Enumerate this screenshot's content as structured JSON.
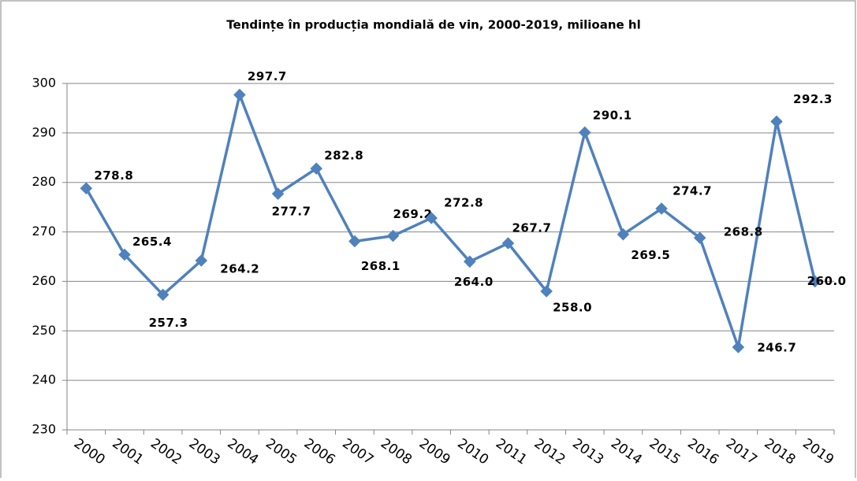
{
  "chart_data": {
    "type": "line",
    "title": "Tendințe în producția mondială de vin, 2000-2019, milioane hl",
    "categories": [
      "2000",
      "2001",
      "2002",
      "2003",
      "2004",
      "2005",
      "2006",
      "2007",
      "2008",
      "2009",
      "2010",
      "2011",
      "2012",
      "2013",
      "2014",
      "2015",
      "2016",
      "2017",
      "2018",
      "2019"
    ],
    "values": [
      278.8,
      265.4,
      257.3,
      264.2,
      297.7,
      277.7,
      282.8,
      268.1,
      269.2,
      272.8,
      264.0,
      267.7,
      258.0,
      290.1,
      269.5,
      274.7,
      268.8,
      246.7,
      292.3,
      260.0
    ],
    "value_labels": [
      "278.8",
      "265.4",
      "257.3",
      "264.2",
      "297.7",
      "277.7",
      "282.8",
      "268.1",
      "269.2",
      "272.8",
      "264.0",
      "267.7",
      "258.0",
      "290.1",
      "269.5",
      "274.7",
      "268.8",
      "246.7",
      "292.3",
      "260.0"
    ],
    "color": "#4f81bd",
    "ylim": [
      230,
      300
    ],
    "yticks": [
      230,
      240,
      250,
      260,
      270,
      280,
      290,
      300
    ],
    "grid": true
  }
}
